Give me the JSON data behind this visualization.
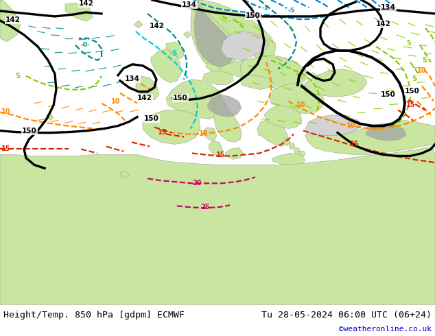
{
  "title_left": "Height/Temp. 850 hPa [gdpm] ECMWF",
  "title_right": "Tu 28-05-2024 06:00 UTC (06+24)",
  "credit": "©weatheronline.co.uk",
  "land_color": "#c8e6a0",
  "sea_color": "#d3d3d3",
  "mountain_color": "#a0a0a0",
  "bottom_bar_color": "#f0f0f0",
  "fig_width": 6.34,
  "fig_height": 4.9,
  "dpi": 100,
  "black_lw": 2.4,
  "temp_lw": 1.6
}
